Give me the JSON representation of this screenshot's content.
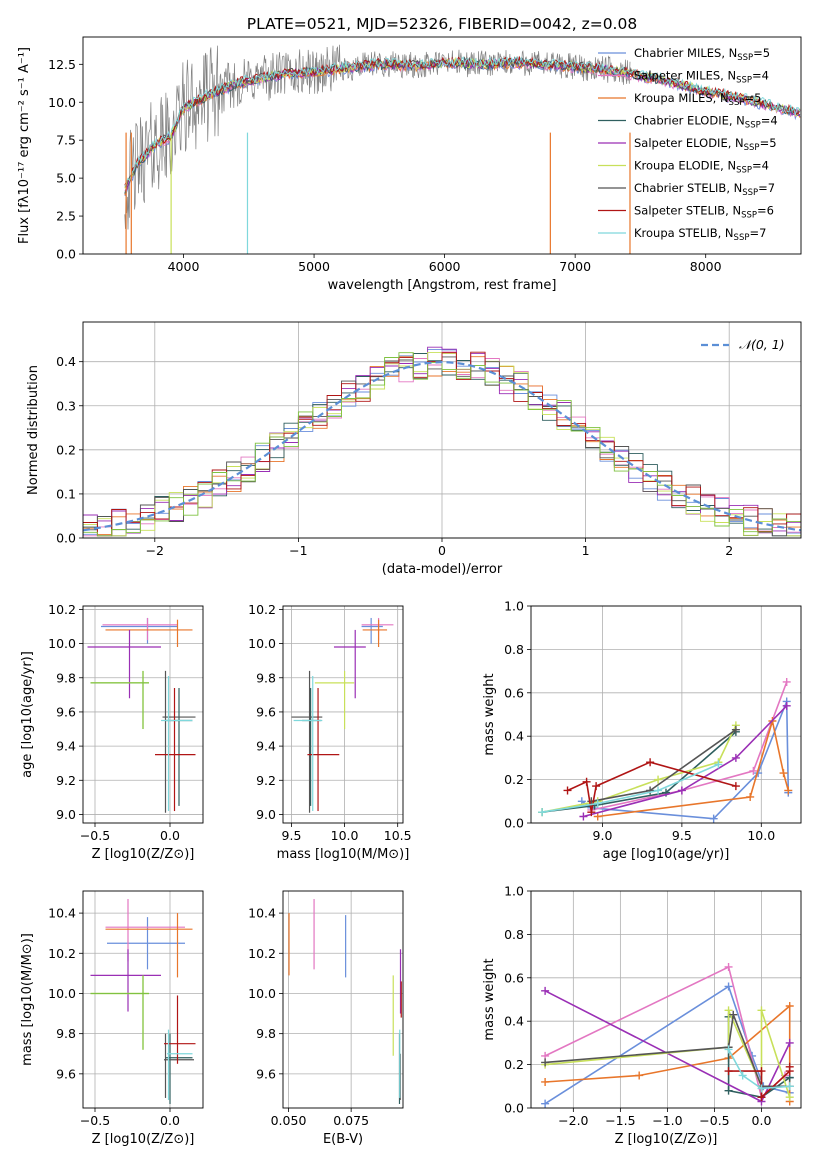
{
  "colors": {
    "chabrier_miles": "#6a8fdb",
    "salpeter_miles": "#e377c2",
    "kroupa_miles": "#e8762b",
    "chabrier_elodie": "#2f5f5f",
    "salpeter_elodie": "#9a2fb5",
    "kroupa_elodie": "#c8e05a",
    "chabrier_stelib": "#555555",
    "salpeter_stelib": "#b01515",
    "kroupa_stelib": "#7fd8dc",
    "gaussian": "#5b8fd6",
    "green_model": "#7fc241"
  },
  "chart_data": [
    {
      "id": "spectrum",
      "type": "line",
      "title": "PLATE=0521, MJD=52326, FIBERID=0042, z=0.08",
      "xlabel": "wavelength [Angstrom, rest frame]",
      "ylabel": "Flux [fλ10⁻¹⁷ erg cm⁻² s⁻¹ A⁻¹]",
      "xlim": [
        3230,
        8730
      ],
      "ylim": [
        0,
        14.3
      ],
      "xticks": [
        "4000",
        "5000",
        "6000",
        "7000",
        "8000"
      ],
      "yticks": [
        "0.0",
        "2.5",
        "5.0",
        "7.5",
        "10.0",
        "12.5"
      ],
      "legend_position": "upper-right",
      "legend": [
        "Chabrier MILES, N_SSP=5",
        "Salpeter MILES, N_SSP=4",
        "Kroupa MILES, N_SSP=5",
        "Chabrier ELODIE, N_SSP=4",
        "Salpeter ELODIE, N_SSP=5",
        "Kroupa ELODIE, N_SSP=4",
        "Chabrier STELIB, N_SSP=7",
        "Salpeter STELIB, N_SSP=6",
        "Kroupa STELIB, N_SSP=7"
      ],
      "continuum": {
        "x": [
          3550,
          3650,
          3800,
          3900,
          4000,
          4200,
          4400,
          4600,
          4800,
          5000,
          5200,
          5500,
          5800,
          6000,
          6300,
          6600,
          6900,
          7200,
          7400,
          7700,
          8000,
          8300,
          8700
        ],
        "y": [
          4.2,
          6.0,
          7.3,
          7.7,
          9.6,
          10.5,
          11.2,
          11.6,
          11.9,
          12.0,
          12.2,
          12.5,
          12.4,
          12.6,
          12.5,
          12.6,
          12.4,
          12.2,
          11.9,
          11.4,
          10.7,
          10.2,
          9.3
        ]
      },
      "model_range": [
        3550,
        8730
      ],
      "data_range": [
        3550,
        7420
      ]
    },
    {
      "id": "residual-histogram",
      "type": "line",
      "xlabel": "(data-model)/error",
      "ylabel": "Normed distribution",
      "xlim": [
        -2.5,
        2.5
      ],
      "ylim": [
        0,
        0.49
      ],
      "xticks": [
        "−2",
        "−1",
        "0",
        "1",
        "2"
      ],
      "yticks": [
        "0.0",
        "0.1",
        "0.2",
        "0.3",
        "0.4"
      ],
      "legend_position": "upper-right",
      "legend": [
        "𝒩(0, 1)"
      ],
      "bin_width": 0.1
    },
    {
      "id": "age-vs-z",
      "type": "scatter",
      "xlabel": "Z [log10(Z/Z⊙)]",
      "ylabel": "age  [log10(age/yr)]",
      "xlim": [
        -0.58,
        0.22
      ],
      "ylim": [
        8.95,
        10.22
      ],
      "xticks": [
        "−0.5",
        "0.0"
      ],
      "yticks": [
        "9.0",
        "9.2",
        "9.4",
        "9.6",
        "9.8",
        "10.0",
        "10.2"
      ],
      "points": [
        {
          "c": "chabrier_miles",
          "x": -0.15,
          "xlo": -0.46,
          "xhi": 0.05,
          "y": 10.1,
          "ylo": 10.0,
          "yhi": 10.15
        },
        {
          "c": "salpeter_miles",
          "x": -0.15,
          "xlo": -0.45,
          "xhi": 0.05,
          "y": 10.11,
          "ylo": 10.02,
          "yhi": 10.15
        },
        {
          "c": "kroupa_miles",
          "x": 0.05,
          "xlo": -0.43,
          "xhi": 0.15,
          "y": 10.08,
          "ylo": 9.98,
          "yhi": 10.14
        },
        {
          "c": "chabrier_elodie",
          "x": 0.06,
          "xlo": -0.03,
          "xhi": 0.15,
          "y": 9.55,
          "ylo": 9.05,
          "yhi": 9.74
        },
        {
          "c": "salpeter_elodie",
          "x": -0.27,
          "xlo": -0.55,
          "xhi": -0.06,
          "y": 9.98,
          "ylo": 9.68,
          "yhi": 10.08
        },
        {
          "c": "kroupa_elodie",
          "x": -0.18,
          "xlo": -0.53,
          "xhi": -0.14,
          "y": 9.77,
          "ylo": 9.5,
          "yhi": 9.84
        },
        {
          "c": "chabrier_stelib",
          "x": -0.03,
          "xlo": -0.05,
          "xhi": 0.17,
          "y": 9.57,
          "ylo": 9.01,
          "yhi": 9.84
        },
        {
          "c": "salpeter_stelib",
          "x": 0.03,
          "xlo": -0.1,
          "xhi": 0.17,
          "y": 9.35,
          "ylo": 9.02,
          "yhi": 9.74
        },
        {
          "c": "kroupa_stelib",
          "x": -0.01,
          "xlo": -0.06,
          "xhi": 0.15,
          "y": 9.55,
          "ylo": 9.02,
          "yhi": 9.81
        },
        {
          "c": "green_model",
          "x": -0.18,
          "xlo": -0.53,
          "xhi": -0.14,
          "y": 9.77,
          "ylo": 9.5,
          "yhi": 9.84
        }
      ]
    },
    {
      "id": "age-vs-mass",
      "type": "scatter",
      "xlabel": "mass [log10(M/M⊙)]",
      "ylabel": "",
      "xlim": [
        9.42,
        10.55
      ],
      "ylim": [
        8.95,
        10.22
      ],
      "xticks": [
        "9.5",
        "10.0",
        "10.5"
      ],
      "yticks": [
        "9.0",
        "9.2",
        "9.4",
        "9.6",
        "9.8",
        "10.0",
        "10.2"
      ],
      "points": [
        {
          "c": "chabrier_miles",
          "x": 10.25,
          "xlo": 10.16,
          "xhi": 10.36,
          "y": 10.1,
          "ylo": 10.0,
          "yhi": 10.15
        },
        {
          "c": "salpeter_miles",
          "x": 10.32,
          "xlo": 10.16,
          "xhi": 10.46,
          "y": 10.11,
          "ylo": 10.02,
          "yhi": 10.15
        },
        {
          "c": "kroupa_miles",
          "x": 10.32,
          "xlo": 10.17,
          "xhi": 10.4,
          "y": 10.08,
          "ylo": 9.98,
          "yhi": 10.14
        },
        {
          "c": "chabrier_elodie",
          "x": 9.68,
          "xlo": 9.6,
          "xhi": 9.78,
          "y": 9.55,
          "ylo": 9.05,
          "yhi": 9.74
        },
        {
          "c": "salpeter_elodie",
          "x": 10.1,
          "xlo": 9.9,
          "xhi": 10.2,
          "y": 9.98,
          "ylo": 9.68,
          "yhi": 10.08
        },
        {
          "c": "kroupa_elodie",
          "x": 10.0,
          "xlo": 9.72,
          "xhi": 10.09,
          "y": 9.77,
          "ylo": 9.5,
          "yhi": 9.84
        },
        {
          "c": "chabrier_stelib",
          "x": 9.67,
          "xlo": 9.5,
          "xhi": 9.79,
          "y": 9.57,
          "ylo": 9.01,
          "yhi": 9.84
        },
        {
          "c": "salpeter_stelib",
          "x": 9.75,
          "xlo": 9.65,
          "xhi": 9.95,
          "y": 9.35,
          "ylo": 9.02,
          "yhi": 9.74
        },
        {
          "c": "kroupa_stelib",
          "x": 9.7,
          "xlo": 9.52,
          "xhi": 9.79,
          "y": 9.55,
          "ylo": 9.02,
          "yhi": 9.81
        }
      ]
    },
    {
      "id": "mass-weight-vs-age",
      "type": "line",
      "xlabel": "age  [log10(age/yr)]",
      "ylabel": "mass weight",
      "xlim": [
        8.55,
        10.25
      ],
      "ylim": [
        0,
        1
      ],
      "xticks": [
        "9.0",
        "9.5",
        "10.0"
      ],
      "yticks": [
        "0.0",
        "0.2",
        "0.4",
        "0.6",
        "0.8",
        "1.0"
      ],
      "series": [
        {
          "c": "chabrier_miles",
          "x": [
            8.87,
            8.93,
            9.7,
            9.98,
            10.16,
            10.17
          ],
          "y": [
            0.1,
            0.07,
            0.02,
            0.23,
            0.56,
            0.14
          ]
        },
        {
          "c": "salpeter_miles",
          "x": [
            8.93,
            9.5,
            9.95,
            10.16
          ],
          "y": [
            0.06,
            0.15,
            0.24,
            0.65
          ]
        },
        {
          "c": "kroupa_miles",
          "x": [
            8.97,
            9.93,
            10.07,
            10.14,
            10.17
          ],
          "y": [
            0.03,
            0.12,
            0.47,
            0.23,
            0.15
          ]
        },
        {
          "c": "chabrier_elodie",
          "x": [
            8.62,
            8.95,
            9.4,
            9.84
          ],
          "y": [
            0.05,
            0.08,
            0.14,
            0.42
          ]
        },
        {
          "c": "salpeter_elodie",
          "x": [
            8.88,
            9.5,
            9.84,
            10.16
          ],
          "y": [
            0.03,
            0.15,
            0.3,
            0.54
          ]
        },
        {
          "c": "kroupa_elodie",
          "x": [
            8.62,
            8.97,
            9.35,
            9.73,
            9.84
          ],
          "y": [
            0.05,
            0.1,
            0.2,
            0.28,
            0.45
          ]
        },
        {
          "c": "chabrier_stelib",
          "x": [
            8.93,
            9.3,
            9.84
          ],
          "y": [
            0.1,
            0.15,
            0.43
          ]
        },
        {
          "c": "salpeter_stelib",
          "x": [
            8.78,
            8.9,
            8.93,
            8.96,
            9.3,
            9.84
          ],
          "y": [
            0.15,
            0.19,
            0.05,
            0.17,
            0.28,
            0.17
          ]
        },
        {
          "c": "kroupa_stelib",
          "x": [
            8.62,
            8.97,
            9.35,
            9.73
          ],
          "y": [
            0.05,
            0.09,
            0.15,
            0.27
          ]
        }
      ]
    },
    {
      "id": "mass-vs-z",
      "type": "scatter",
      "xlabel": "Z [log10(Z/Z⊙)]",
      "ylabel": "mass [log10(M/M⊙)]",
      "xlim": [
        -0.58,
        0.22
      ],
      "ylim": [
        9.43,
        10.51
      ],
      "xticks": [
        "−0.5",
        "0.0"
      ],
      "yticks": [
        "9.6",
        "9.8",
        "10.0",
        "10.2",
        "10.4"
      ],
      "points": [
        {
          "c": "chabrier_miles",
          "x": -0.15,
          "xlo": -0.42,
          "xhi": 0.1,
          "y": 10.25,
          "ylo": 10.12,
          "yhi": 10.38
        },
        {
          "c": "salpeter_miles",
          "x": -0.28,
          "xlo": -0.43,
          "xhi": 0.1,
          "y": 10.33,
          "ylo": 10.16,
          "yhi": 10.47
        },
        {
          "c": "kroupa_miles",
          "x": 0.05,
          "xlo": -0.43,
          "xhi": 0.15,
          "y": 10.32,
          "ylo": 10.08,
          "yhi": 10.4
        },
        {
          "c": "chabrier_elodie",
          "x": 0.0,
          "xlo": -0.03,
          "xhi": 0.15,
          "y": 9.68,
          "ylo": 9.45,
          "yhi": 9.8
        },
        {
          "c": "salpeter_elodie",
          "x": -0.28,
          "xlo": -0.53,
          "xhi": -0.06,
          "y": 10.09,
          "ylo": 9.91,
          "yhi": 10.22
        },
        {
          "c": "kroupa_elodie",
          "x": -0.18,
          "xlo": -0.53,
          "xhi": -0.14,
          "y": 10.0,
          "ylo": 9.72,
          "yhi": 10.09
        },
        {
          "c": "chabrier_stelib",
          "x": -0.03,
          "xlo": -0.04,
          "xhi": 0.16,
          "y": 9.67,
          "ylo": 9.48,
          "yhi": 9.8
        },
        {
          "c": "salpeter_stelib",
          "x": 0.05,
          "xlo": -0.04,
          "xhi": 0.17,
          "y": 9.75,
          "ylo": 9.65,
          "yhi": 9.99
        },
        {
          "c": "kroupa_stelib",
          "x": -0.01,
          "xlo": -0.02,
          "xhi": 0.15,
          "y": 9.7,
          "ylo": 9.47,
          "yhi": 9.82
        },
        {
          "c": "green_model",
          "x": -0.18,
          "xlo": -0.53,
          "xhi": -0.14,
          "y": 10.0,
          "ylo": 9.72,
          "yhi": 10.09
        }
      ]
    },
    {
      "id": "mass-vs-ebv",
      "type": "scatter",
      "xlabel": "E(B-V)",
      "ylabel": "",
      "xlim": [
        0.0478,
        0.0957
      ],
      "ylim": [
        9.43,
        10.51
      ],
      "xticks": [
        "0.050",
        "0.075"
      ],
      "yticks": [
        "9.6",
        "9.8",
        "10.0",
        "10.2",
        "10.4"
      ],
      "vlines": [
        {
          "c": "kroupa_miles",
          "x": 0.0502,
          "ylo": 10.09,
          "yhi": 10.4
        },
        {
          "c": "salpeter_miles",
          "x": 0.0602,
          "ylo": 10.12,
          "yhi": 10.47
        },
        {
          "c": "chabrier_miles",
          "x": 0.0728,
          "ylo": 10.08,
          "yhi": 10.39
        },
        {
          "c": "kroupa_elodie",
          "x": 0.0918,
          "ylo": 9.69,
          "yhi": 10.09
        },
        {
          "c": "chabrier_elodie",
          "x": 0.0943,
          "ylo": 9.45,
          "yhi": 9.8
        },
        {
          "c": "salpeter_elodie",
          "x": 0.0947,
          "ylo": 9.9,
          "yhi": 10.22
        },
        {
          "c": "salpeter_stelib",
          "x": 0.095,
          "ylo": 9.88,
          "yhi": 10.06
        },
        {
          "c": "chabrier_stelib",
          "x": 0.0946,
          "ylo": 9.47,
          "yhi": 9.7
        },
        {
          "c": "kroupa_stelib",
          "x": 0.0944,
          "ylo": 9.48,
          "yhi": 9.82
        }
      ]
    },
    {
      "id": "mass-weight-vs-z",
      "type": "line",
      "xlabel": "Z [log10(Z/Z⊙)]",
      "ylabel": "mass weight",
      "xlim": [
        -2.45,
        0.42
      ],
      "ylim": [
        0,
        1
      ],
      "xticks": [
        "−2.0",
        "−1.5",
        "−1.0",
        "−0.5",
        "0.0"
      ],
      "yticks": [
        "0.0",
        "0.2",
        "0.4",
        "0.6",
        "0.8",
        "1.0"
      ],
      "series": [
        {
          "c": "chabrier_miles",
          "x": [
            -2.3,
            -0.35,
            -0.1,
            0.02,
            0.3,
            0.3
          ],
          "y": [
            0.02,
            0.56,
            0.24,
            0.1,
            0.07,
            0.14
          ]
        },
        {
          "c": "salpeter_miles",
          "x": [
            -2.3,
            -0.35,
            0.0,
            0.25
          ],
          "y": [
            0.24,
            0.65,
            0.05,
            0.15
          ]
        },
        {
          "c": "kroupa_miles",
          "x": [
            -2.3,
            -1.3,
            -0.35,
            0.3,
            0.3
          ],
          "y": [
            0.12,
            0.15,
            0.23,
            0.47,
            0.03
          ]
        },
        {
          "c": "chabrier_elodie",
          "x": [
            -0.35,
            -0.35,
            0.0,
            0.3
          ],
          "y": [
            0.42,
            0.08,
            0.05,
            0.14
          ]
        },
        {
          "c": "salpeter_elodie",
          "x": [
            -2.3,
            0.0,
            0.3
          ],
          "y": [
            0.54,
            0.03,
            0.3
          ]
        },
        {
          "c": "kroupa_elodie",
          "x": [
            -2.3,
            -0.35,
            -0.35,
            0.0,
            0.0,
            0.3
          ],
          "y": [
            0.2,
            0.28,
            0.45,
            0.1,
            0.45,
            0.05
          ]
        },
        {
          "c": "chabrier_stelib",
          "x": [
            -2.3,
            -0.35,
            -0.3,
            0.0,
            0.3
          ],
          "y": [
            0.21,
            0.28,
            0.43,
            0.1,
            0.1
          ]
        },
        {
          "c": "salpeter_stelib",
          "x": [
            -0.35,
            0.0,
            0.0,
            0.3,
            0.3
          ],
          "y": [
            0.17,
            0.17,
            0.05,
            0.17,
            0.19
          ]
        },
        {
          "c": "kroupa_stelib",
          "x": [
            -0.35,
            -0.2,
            0.0,
            0.3
          ],
          "y": [
            0.27,
            0.15,
            0.09,
            0.1
          ]
        }
      ]
    }
  ]
}
